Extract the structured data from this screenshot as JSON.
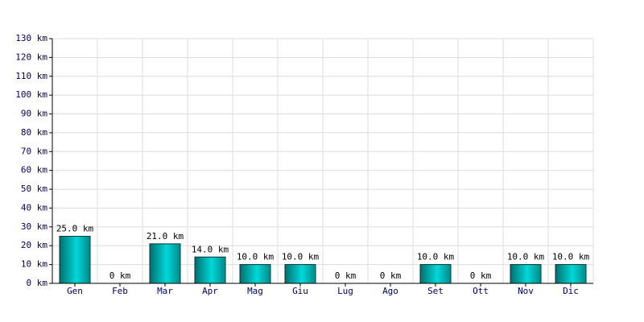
{
  "chart_data": {
    "type": "bar",
    "categories": [
      "Gen",
      "Feb",
      "Mar",
      "Apr",
      "Mag",
      "Giu",
      "Lug",
      "Ago",
      "Set",
      "Ott",
      "Nov",
      "Dic"
    ],
    "values": [
      25,
      0,
      21,
      14,
      10,
      10,
      0,
      0,
      10,
      0,
      10,
      10
    ],
    "value_labels": [
      "25.0 km",
      "0 km",
      "21.0 km",
      "14.0 km",
      "10.0 km",
      "10.0 km",
      "0 km",
      "0 km",
      "10.0 km",
      "0 km",
      "10.0 km",
      "10.0 km"
    ],
    "color": "#00d8d8",
    "ylim": [
      0,
      130
    ],
    "yticks": [
      {
        "value": 0,
        "label": "0 km"
      },
      {
        "value": 10,
        "label": "10 km"
      },
      {
        "value": 20,
        "label": "20 km"
      },
      {
        "value": 30,
        "label": "30 km"
      },
      {
        "value": 40,
        "label": "40 km"
      },
      {
        "value": 50,
        "label": "50 km"
      },
      {
        "value": 60,
        "label": "60 km"
      },
      {
        "value": 70,
        "label": "70 km"
      },
      {
        "value": 80,
        "label": "80 km"
      },
      {
        "value": 90,
        "label": "90 km"
      },
      {
        "value": 100,
        "label": "100 km"
      },
      {
        "value": 110,
        "label": "110 km"
      },
      {
        "value": 120,
        "label": "120 km"
      },
      {
        "value": 130,
        "label": "130 km"
      }
    ],
    "grid": true
  }
}
